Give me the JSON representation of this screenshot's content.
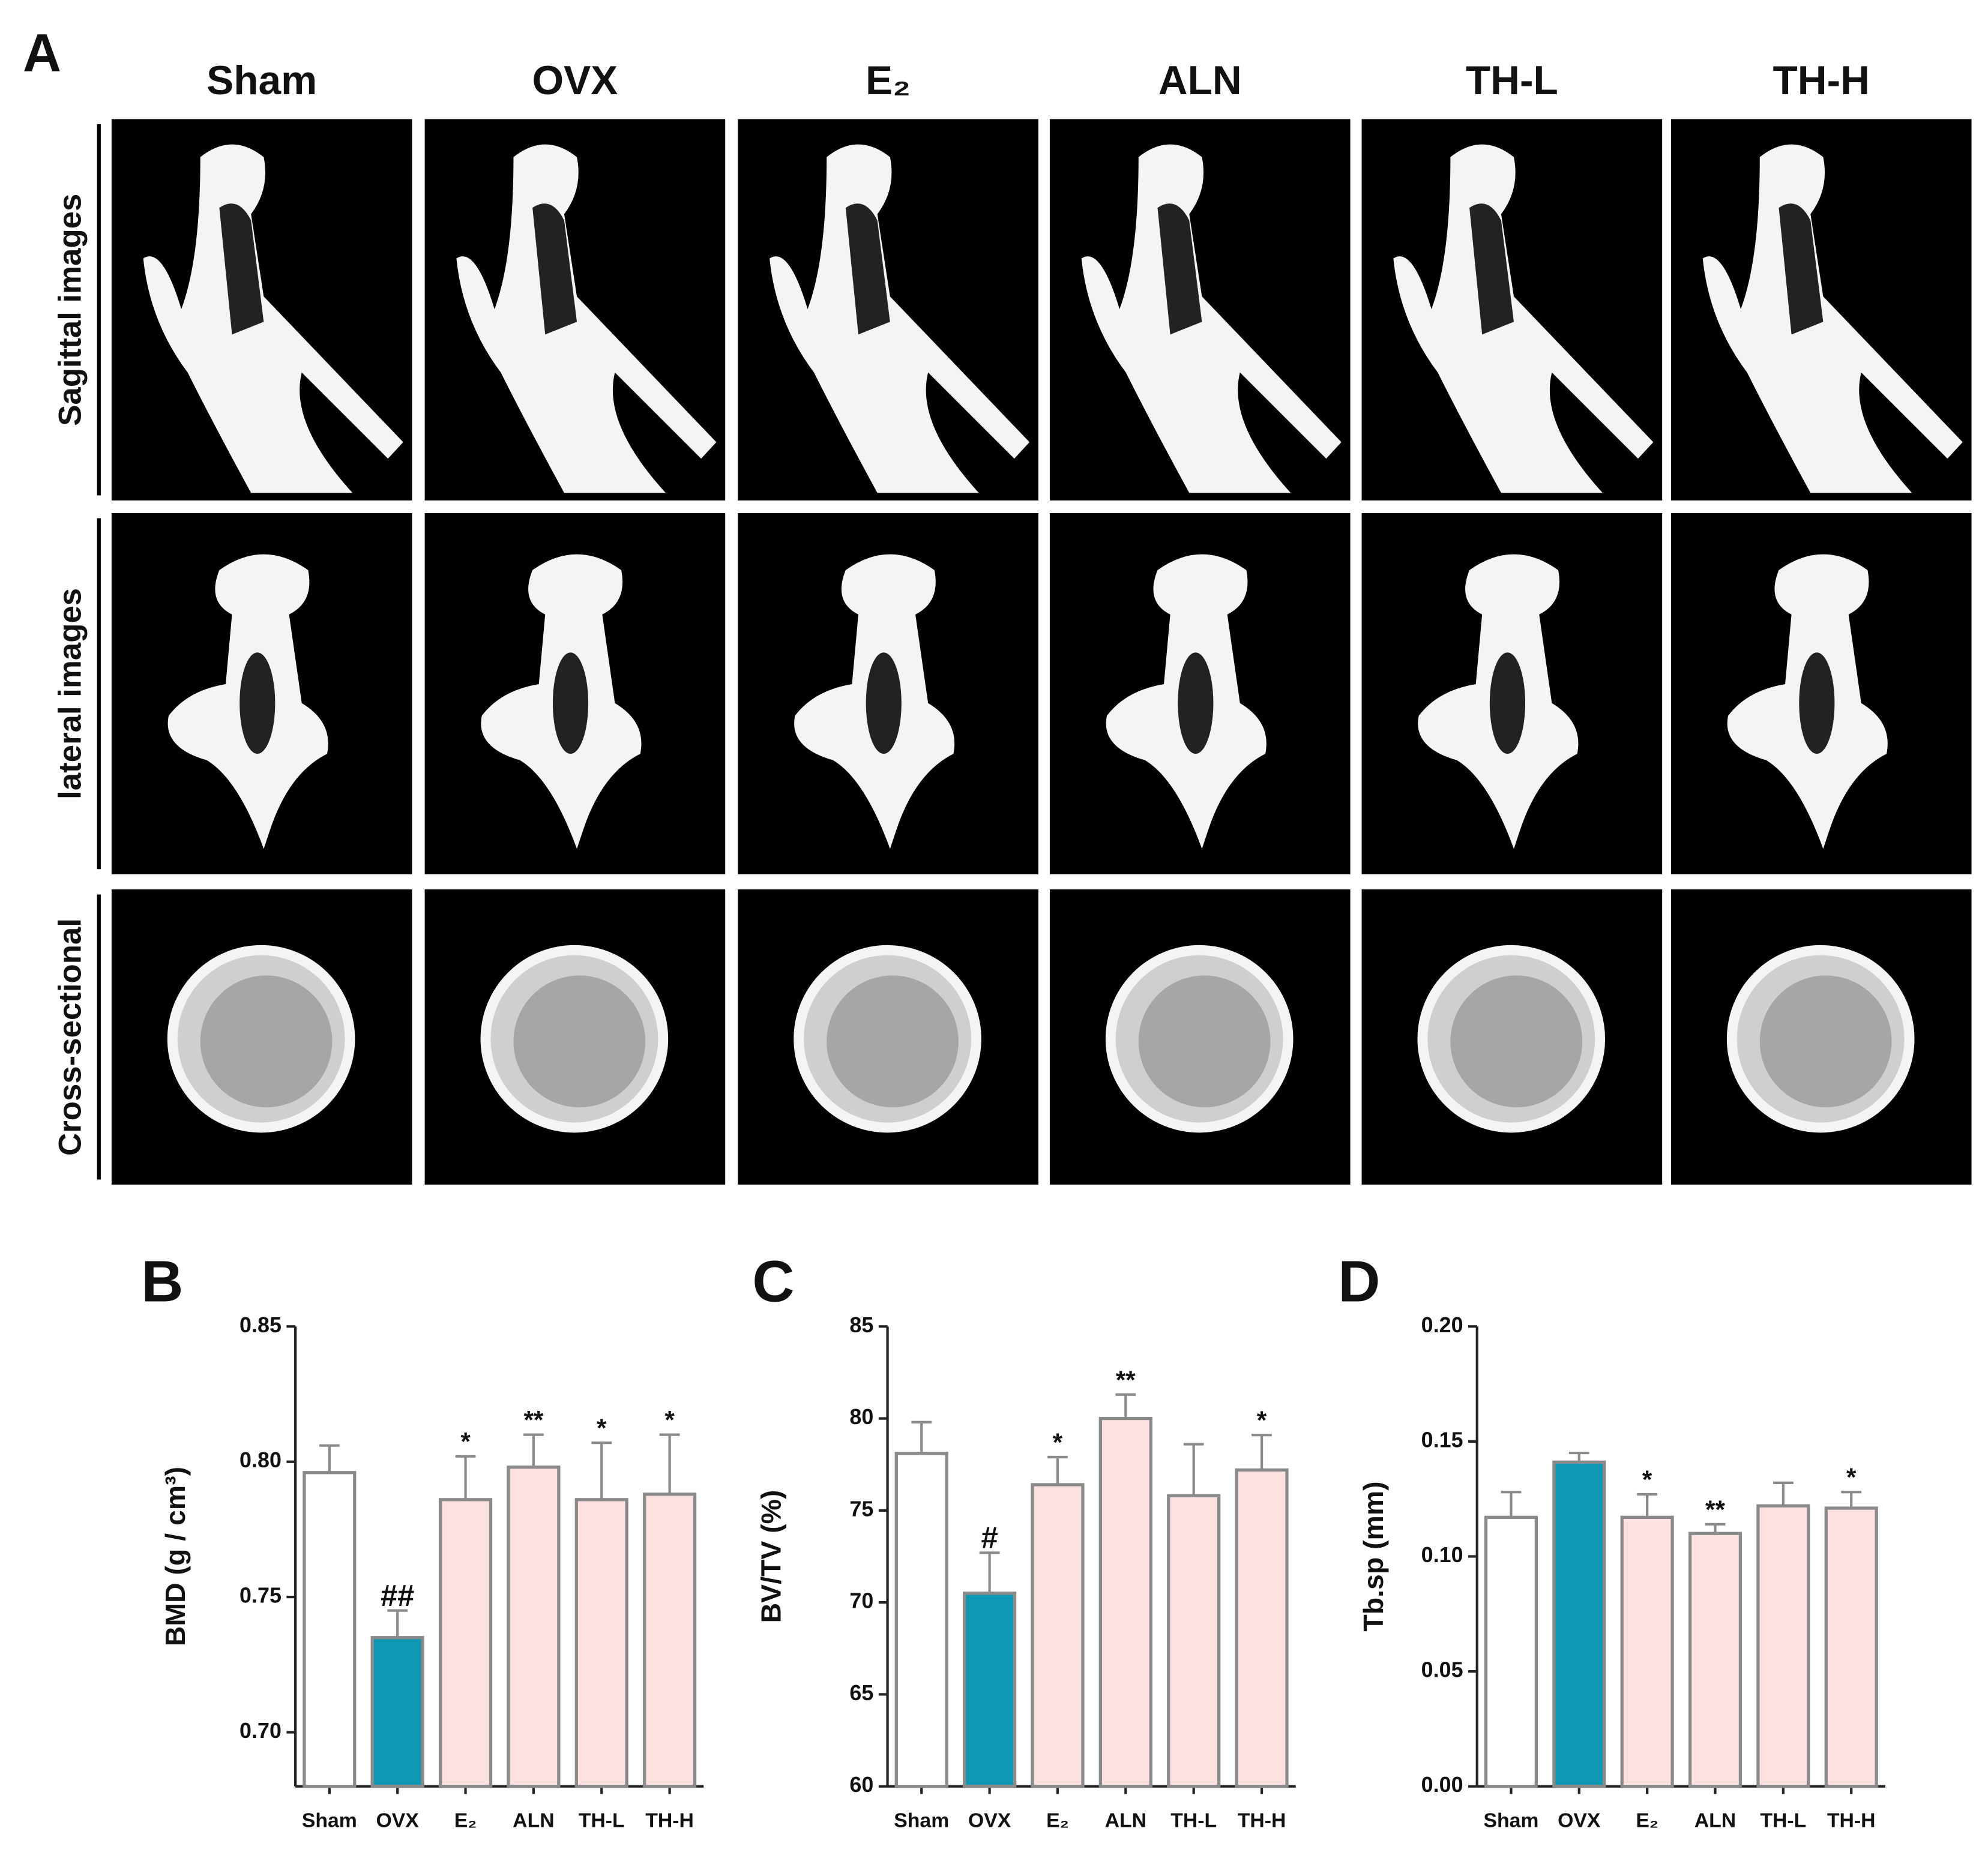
{
  "figure": {
    "panel_labels": [
      "A",
      "B",
      "C",
      "D"
    ],
    "columns": [
      "Sham",
      "OVX",
      "E₂",
      "ALN",
      "TH-L",
      "TH-H"
    ],
    "rows": [
      "Sagittal images",
      "lateral images",
      "Cross-sectional"
    ]
  },
  "chart_data": [
    {
      "type": "bar",
      "ylabel": "BMD (g / cm³)",
      "categories": [
        "Sham",
        "OVX",
        "E₂",
        "ALN",
        "TH-L",
        "TH-H"
      ],
      "values": [
        0.796,
        0.735,
        0.786,
        0.798,
        0.786,
        0.788
      ],
      "errors": [
        0.01,
        0.01,
        0.016,
        0.012,
        0.021,
        0.022
      ],
      "colors": [
        "#ffffff",
        "#0e98b3",
        "#fde1e1",
        "#fde1e1",
        "#fde1e1",
        "#fde1e1"
      ],
      "annotations": [
        null,
        "##",
        "*",
        "**",
        "*",
        "*"
      ],
      "ylim": [
        0.68,
        0.85
      ],
      "yticks": [
        {
          "value": 0.7,
          "label": "0.70"
        },
        {
          "value": 0.75,
          "label": "0.75"
        },
        {
          "value": 0.8,
          "label": "0.80"
        },
        {
          "value": 0.85,
          "label": "0.85"
        }
      ]
    },
    {
      "type": "bar",
      "ylabel": "BV/TV (%)",
      "categories": [
        "Sham",
        "OVX",
        "E₂",
        "ALN",
        "TH-L",
        "TH-H"
      ],
      "values": [
        78.1,
        70.5,
        76.4,
        80.0,
        75.8,
        77.2
      ],
      "errors": [
        1.7,
        2.2,
        1.5,
        1.3,
        2.8,
        1.9
      ],
      "colors": [
        "#ffffff",
        "#0e98b3",
        "#fde1e1",
        "#fde1e1",
        "#fde1e1",
        "#fde1e1"
      ],
      "annotations": [
        null,
        "#",
        "*",
        "**",
        null,
        "*"
      ],
      "ylim": [
        60,
        85
      ],
      "yticks": [
        60,
        65,
        70,
        75,
        80,
        85
      ]
    },
    {
      "type": "bar",
      "ylabel": "Tb.sp (mm)",
      "categories": [
        "Sham",
        "OVX",
        "E₂",
        "ALN",
        "TH-L",
        "TH-H"
      ],
      "values": [
        0.117,
        0.141,
        0.117,
        0.11,
        0.122,
        0.121
      ],
      "errors": [
        0.011,
        0.004,
        0.01,
        0.004,
        0.01,
        0.007
      ],
      "colors": [
        "#ffffff",
        "#0e98b3",
        "#fde1e1",
        "#fde1e1",
        "#fde1e1",
        "#fde1e1"
      ],
      "annotations": [
        null,
        null,
        "*",
        "**",
        null,
        "*"
      ],
      "ylim": [
        0,
        0.2
      ],
      "yticks": [
        {
          "value": 0,
          "label": "0.00"
        },
        {
          "value": 0.05,
          "label": "0.05"
        },
        {
          "value": 0.1,
          "label": "0.10"
        },
        {
          "value": 0.15,
          "label": "0.15"
        },
        {
          "value": 0.2,
          "label": "0.20"
        }
      ]
    }
  ]
}
